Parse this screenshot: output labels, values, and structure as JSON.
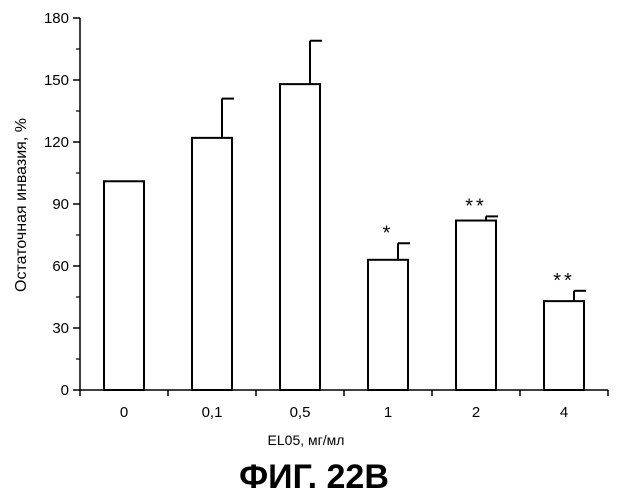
{
  "chart_data": {
    "type": "bar",
    "categories": [
      "0",
      "0,1",
      "0,5",
      "1",
      "2",
      "4"
    ],
    "values": [
      101,
      122,
      148,
      63,
      82,
      43
    ],
    "error_upper": [
      0,
      19,
      21,
      8,
      2,
      5
    ],
    "significance": [
      "",
      "",
      "",
      "*",
      "**",
      "**"
    ],
    "xlabel": "EL05, мг/мл",
    "ylabel": "Остаточная инвазия, %",
    "ylim": [
      0,
      180
    ],
    "yticks": [
      0,
      30,
      60,
      90,
      120,
      150,
      180
    ],
    "grid": false,
    "bar_fill": "#ffffff",
    "bar_stroke": "#000000"
  },
  "figure_caption": "ФИГ. 22В"
}
